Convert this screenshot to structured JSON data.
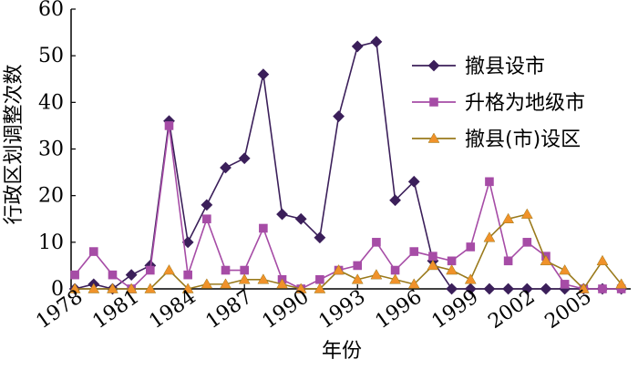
{
  "chart_data": {
    "type": "line",
    "title": "",
    "xlabel": "年份",
    "ylabel": "行政区划调整次数",
    "x": [
      1978,
      1979,
      1980,
      1981,
      1982,
      1983,
      1984,
      1985,
      1986,
      1987,
      1988,
      1989,
      1990,
      1991,
      1992,
      1993,
      1994,
      1995,
      1996,
      1997,
      1998,
      1999,
      2000,
      2001,
      2002,
      2003,
      2004,
      2005,
      2006,
      2007
    ],
    "xlim": [
      1977.8,
      2007.5
    ],
    "xticks": [
      "1978",
      "1981",
      "1984",
      "1987",
      "1990",
      "1993",
      "1996",
      "1999",
      "2002",
      "2005"
    ],
    "xtick_values": [
      1978,
      1981,
      1984,
      1987,
      1990,
      1993,
      1996,
      1999,
      2002,
      2005
    ],
    "ylim": [
      0,
      60
    ],
    "yticks": [
      "0",
      "10",
      "20",
      "30",
      "40",
      "50",
      "60"
    ],
    "ytick_values": [
      0,
      10,
      20,
      30,
      40,
      50,
      60
    ],
    "grid": false,
    "legend_position": "top-right",
    "series": [
      {
        "name": "撤县设市",
        "marker": "diamond",
        "color": "#3b1f5a",
        "values": [
          0,
          1,
          0,
          3,
          5,
          36,
          10,
          18,
          26,
          28,
          46,
          16,
          15,
          11,
          37,
          52,
          53,
          19,
          23,
          6,
          0,
          0,
          0,
          0,
          0,
          0,
          0,
          0,
          0,
          0
        ]
      },
      {
        "name": "升格为地级市",
        "marker": "square",
        "color": "#a64ca6",
        "values": [
          3,
          8,
          3,
          0,
          4,
          35,
          3,
          15,
          4,
          4,
          13,
          2,
          0,
          2,
          4,
          5,
          10,
          4,
          8,
          7,
          6,
          9,
          23,
          6,
          10,
          7,
          1,
          0,
          0,
          0
        ]
      },
      {
        "name": "撤县(市)设区",
        "marker": "triangle",
        "color": "#9a7a1c",
        "fill": "#f0922a",
        "values": [
          0,
          0,
          0,
          0,
          0,
          4,
          0,
          1,
          1,
          2,
          2,
          1,
          0,
          0,
          4,
          2,
          3,
          2,
          1,
          5,
          4,
          2,
          11,
          15,
          16,
          6,
          4,
          0,
          6,
          1
        ]
      }
    ]
  }
}
